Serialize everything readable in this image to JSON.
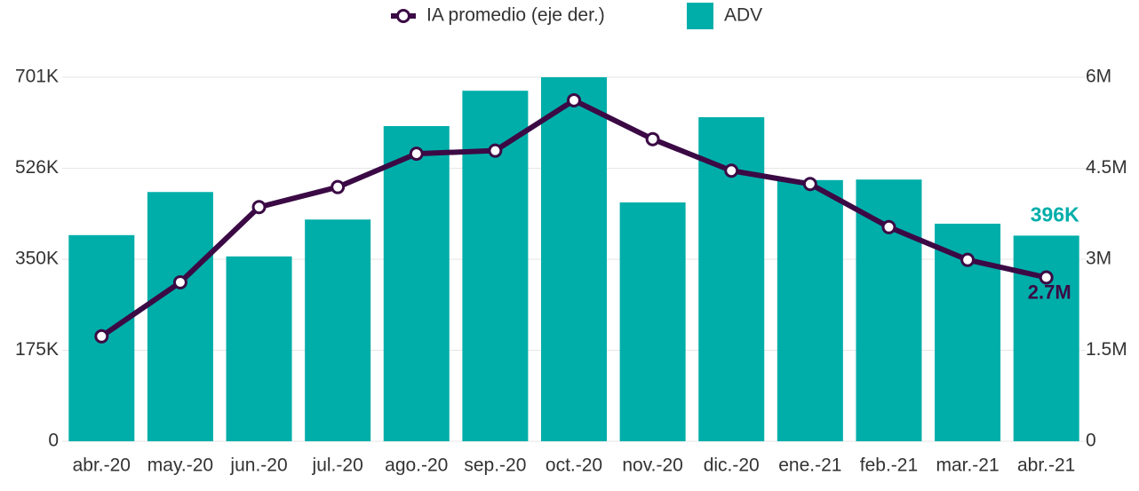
{
  "chart_data": {
    "type": "bar-line",
    "categories": [
      "abr.-20",
      "may.-20",
      "jun.-20",
      "jul.-20",
      "ago.-20",
      "sep.-20",
      "oct.-20",
      "nov.-20",
      "dic.-20",
      "ene.-21",
      "feb.-21",
      "mar.-21",
      "abr.-21"
    ],
    "series": [
      {
        "name": "IA promedio (eje der.)",
        "type": "line",
        "axis": "y2",
        "color": "#3b0a45",
        "values": [
          1730000,
          2620000,
          3860000,
          4190000,
          4740000,
          4790000,
          5620000,
          4980000,
          4460000,
          4240000,
          3530000,
          2990000,
          2700000
        ],
        "value_labels": [
          null,
          null,
          null,
          null,
          null,
          null,
          null,
          null,
          null,
          null,
          null,
          null,
          "2.7M"
        ]
      },
      {
        "name": "ADV",
        "type": "bar",
        "axis": "y",
        "color": "#00aea9",
        "values": [
          397000,
          480000,
          356000,
          427000,
          607000,
          675000,
          701000,
          460000,
          624000,
          503000,
          504000,
          419000,
          396000
        ],
        "value_labels": [
          null,
          null,
          null,
          null,
          null,
          null,
          null,
          null,
          null,
          null,
          null,
          null,
          "396K"
        ]
      }
    ],
    "ylim": [
      0,
      701000
    ],
    "yticks": [
      0,
      {
        "value": 175250,
        "label": "175K"
      },
      {
        "value": 350500,
        "label": "350K"
      },
      {
        "value": 525750,
        "label": "526K"
      },
      {
        "value": 701000,
        "label": "701K"
      }
    ],
    "y2lim": [
      0,
      6000000
    ],
    "y2ticks": [
      0,
      {
        "value": 1500000,
        "label": "1.5M"
      },
      {
        "value": 3000000,
        "label": "3M"
      },
      {
        "value": 4500000,
        "label": "4.5M"
      },
      {
        "value": 6000000,
        "label": "6M"
      }
    ],
    "grid": true,
    "legend": "top"
  }
}
